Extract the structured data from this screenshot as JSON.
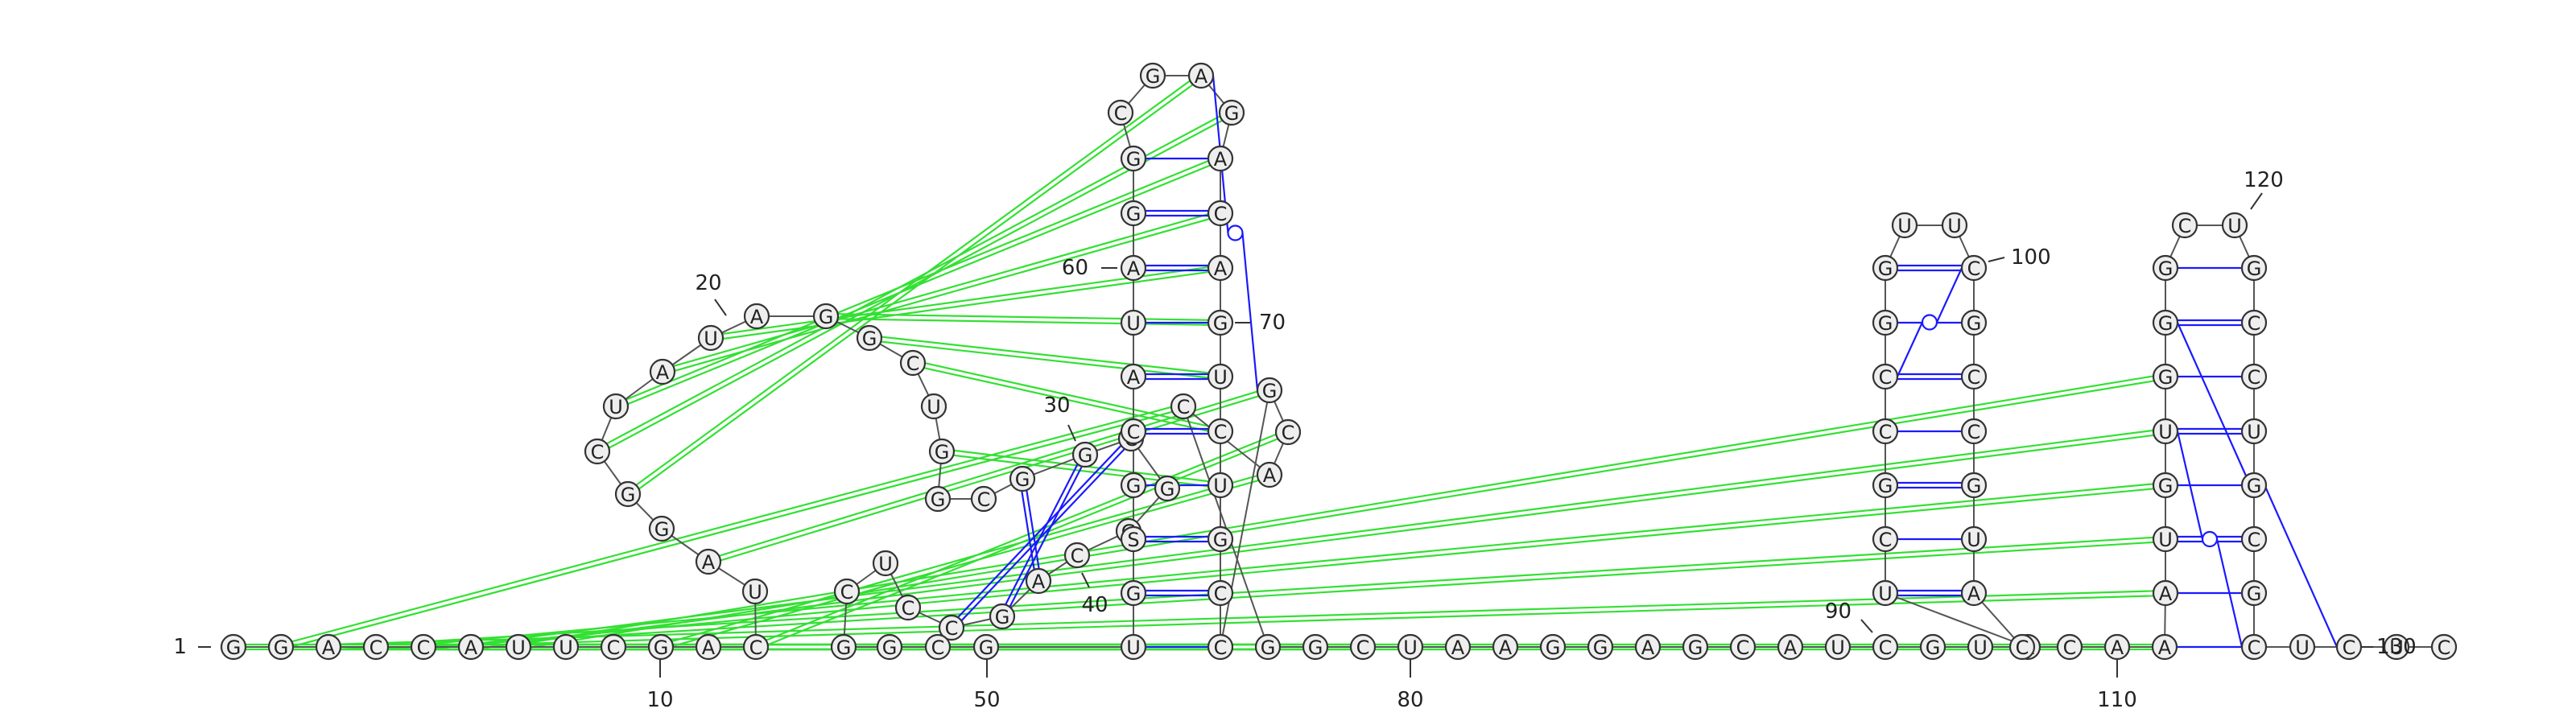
{
  "sequence": [
    "G",
    "G",
    "A",
    "C",
    "C",
    "A",
    "U",
    "U",
    "C",
    "G",
    "A",
    "C",
    "U",
    "A",
    "G",
    "G",
    "C",
    "U",
    "A",
    "U",
    "A",
    "G",
    "G",
    "C",
    "U",
    "G",
    "G",
    "C",
    "G",
    "G",
    "C",
    "G",
    "G",
    "C",
    "A",
    "G",
    "C",
    "C",
    "U",
    "C",
    "G",
    "G",
    "C",
    "G",
    "U",
    "G",
    "S",
    "G",
    "C",
    "A",
    "U",
    "A",
    "G",
    "G",
    "C",
    "G",
    "A",
    "G",
    "A",
    "C",
    "A",
    "G",
    "U",
    "C",
    "U",
    "G",
    "C",
    "C",
    "G",
    "C",
    "A",
    "C",
    "G",
    "G",
    "C",
    "U",
    "A",
    "A",
    "G",
    "G",
    "A",
    "G",
    "C",
    "A",
    "U",
    "C",
    "G",
    "U",
    "A",
    "U",
    "C",
    "G",
    "C",
    "C",
    "G",
    "G",
    "U",
    "U",
    "C",
    "G",
    "C",
    "C",
    "G",
    "U",
    "A",
    "C",
    "C",
    "A",
    "A",
    "A",
    "U",
    "G",
    "U",
    "G",
    "G",
    "G",
    "C",
    "U",
    "G",
    "C",
    "C",
    "U",
    "G",
    "C",
    "G",
    "C",
    "U",
    "C",
    "U",
    "C"
  ],
  "index_labels": [
    "1",
    "10",
    "20",
    "30",
    "40",
    "50",
    "60",
    "70",
    "80",
    "90",
    "100",
    "110",
    "120",
    "130"
  ],
  "colors": {
    "nucleotide_fill": "#eeeeee",
    "nucleotide_stroke": "#333333",
    "canonical_pair": "#1a1aff",
    "wobble_pair": "#1a1aff",
    "pseudoknot_pair": "#33e033",
    "backbone": "#555555"
  },
  "structure": {
    "stems": [
      {
        "from": 12,
        "to": 47,
        "pairs": 1
      },
      {
        "from": 51,
        "to": 68,
        "pairs": 8
      },
      {
        "from": 27,
        "to": 38,
        "pairs": 3
      },
      {
        "from": 88,
        "to": 97,
        "pairs": 8
      },
      {
        "from": 112,
        "to": 121,
        "pairs": 8
      }
    ],
    "wobble_pairs": [
      [
        57,
        69
      ],
      [
        94,
        99
      ],
      [
        113,
        126
      ],
      [
        115,
        128
      ]
    ],
    "pseudoknot_pairs": [
      [
        2,
        72
      ],
      [
        3,
        73
      ],
      [
        4,
        74
      ],
      [
        5,
        75
      ],
      [
        10,
        71
      ],
      [
        12,
        70
      ],
      [
        14,
        69
      ],
      [
        16,
        57
      ],
      [
        17,
        58
      ],
      [
        18,
        59
      ],
      [
        19,
        60
      ],
      [
        20,
        61
      ],
      [
        22,
        62
      ],
      [
        23,
        63
      ],
      [
        24,
        64
      ],
      [
        26,
        65
      ],
      [
        1,
        108
      ],
      [
        2,
        109
      ],
      [
        3,
        110
      ],
      [
        4,
        111
      ],
      [
        5,
        112
      ],
      [
        6,
        113
      ],
      [
        7,
        114
      ]
    ]
  }
}
